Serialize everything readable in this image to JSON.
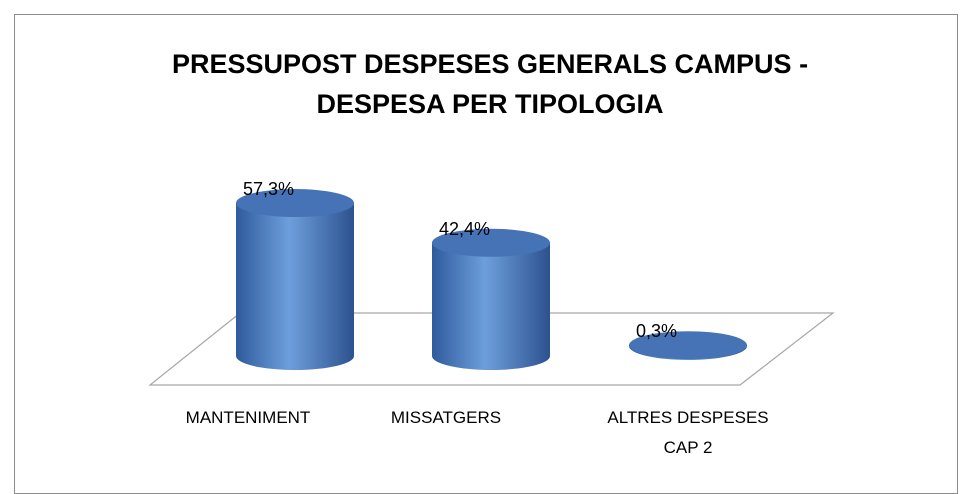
{
  "chart_data": {
    "type": "bar",
    "title": "PRESSUPOST DESPESES GENERALS CAMPUS - DESPESA PER TIPOLOGIA",
    "categories": [
      "MANTENIMENT",
      "MISSATGERS",
      "ALTRES DESPESES CAP 2"
    ],
    "values": [
      57.3,
      42.4,
      0.3
    ],
    "value_labels": [
      "57,3%",
      "42,4%",
      "0,3%"
    ],
    "color": "#4f81bd"
  }
}
